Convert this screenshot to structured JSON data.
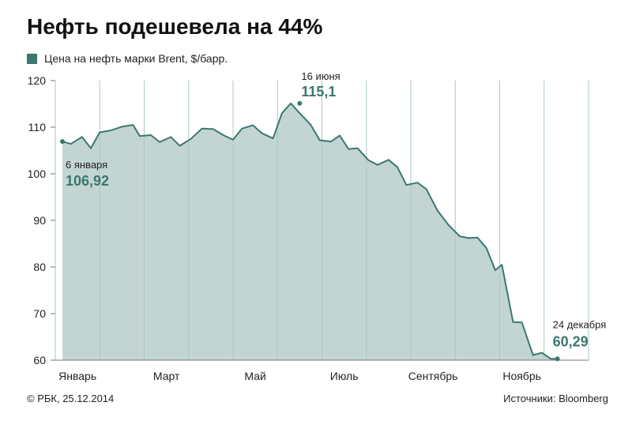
{
  "title": "Нефть подешевела на 44%",
  "legend": {
    "label": "Цена на нефть марки Brent, $/барр.",
    "color": "#3d7670"
  },
  "footer": {
    "copyright": "© РБК, 25.12.2014",
    "source": "Источники: Bloomberg"
  },
  "colors": {
    "area_fill": "#c3d5d3",
    "line": "#3d7670",
    "grid": "#a8c8c5",
    "axis_text": "#222222",
    "annotation_value": "#3d7670"
  },
  "chart_data": {
    "type": "area",
    "title": "Нефть подешевела на 44%",
    "series_name": "Цена на нефть марки Brent, $/барр.",
    "xlabel": "",
    "ylabel": "",
    "ylim": [
      60,
      120
    ],
    "yticks": [
      "60",
      "70",
      "80",
      "90",
      "100",
      "110",
      "120"
    ],
    "ytick_values": [
      60,
      70,
      80,
      90,
      100,
      110,
      120
    ],
    "month_labels": [
      "Январь",
      "Март",
      "Май",
      "Июль",
      "Сентябрь",
      "Ноябрь"
    ],
    "month_starts": [
      0,
      2,
      4,
      6,
      8,
      10
    ],
    "x_unit": "months since start of 2014",
    "grid": "vertical",
    "x": [
      0.16,
      0.35,
      0.6,
      0.8,
      1.0,
      1.25,
      1.5,
      1.75,
      1.9,
      2.15,
      2.35,
      2.6,
      2.8,
      3.05,
      3.3,
      3.55,
      3.8,
      4.0,
      4.2,
      4.45,
      4.65,
      4.9,
      5.1,
      5.3,
      5.5,
      5.75,
      5.95,
      6.2,
      6.4,
      6.6,
      6.8,
      7.05,
      7.25,
      7.5,
      7.7,
      7.9,
      8.15,
      8.35,
      8.6,
      8.85,
      9.1,
      9.3,
      9.5,
      9.7,
      9.9,
      10.05,
      10.3,
      10.5,
      10.75,
      10.95,
      11.15,
      11.3
    ],
    "values": [
      106.92,
      106.4,
      107.9,
      105.5,
      108.9,
      109.3,
      110.1,
      110.5,
      108.1,
      108.3,
      106.8,
      107.9,
      106.0,
      107.5,
      109.7,
      109.6,
      108.2,
      107.3,
      109.7,
      110.4,
      108.7,
      107.6,
      113.0,
      115.1,
      113.0,
      110.5,
      107.2,
      106.9,
      108.2,
      105.3,
      105.5,
      102.9,
      101.9,
      103.0,
      101.4,
      97.6,
      98.1,
      96.7,
      92.1,
      89.0,
      86.6,
      86.2,
      86.3,
      84.1,
      79.3,
      80.5,
      68.2,
      68.1,
      61.1,
      61.6,
      60.29,
      60.29
    ],
    "annotations": [
      {
        "date": "6 января",
        "value": "106,92",
        "x": 0.16,
        "y": 106.92
      },
      {
        "date": "16 июня",
        "value": "115,1",
        "x": 5.5,
        "y": 115.1
      },
      {
        "date": "24 декабря",
        "value": "60,29",
        "x": 11.3,
        "y": 60.29
      }
    ]
  }
}
